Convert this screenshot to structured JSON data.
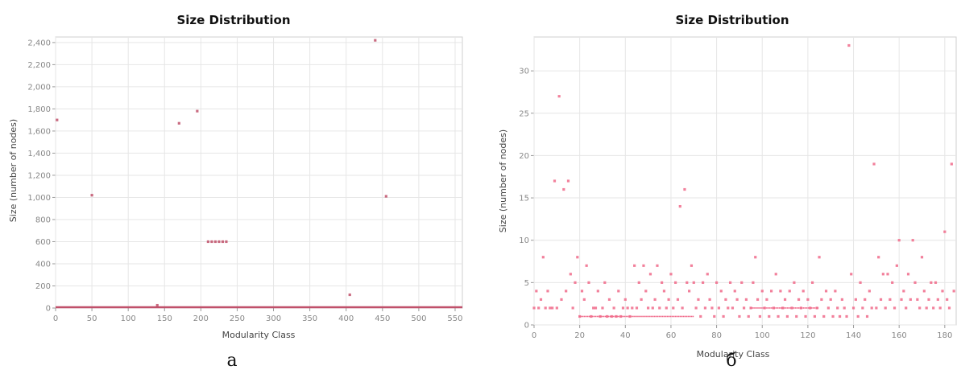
{
  "chart_data": [
    {
      "type": "scatter",
      "title": "Size Distribution",
      "xlabel": "Modularity Class",
      "ylabel": "Size (number of nodes)",
      "panel_label": "а",
      "xlim": [
        0,
        560
      ],
      "ylim": [
        0,
        2450
      ],
      "xticks": [
        "0",
        "50",
        "100",
        "150",
        "200",
        "250",
        "300",
        "350",
        "400",
        "450",
        "500",
        "550"
      ],
      "yticks": [
        "0",
        "200",
        "400",
        "600",
        "800",
        "1,000",
        "1,200",
        "1,400",
        "1,600",
        "1,800",
        "2,000",
        "2,200",
        "2,400"
      ],
      "grid": true,
      "marker_color": "#c0506a",
      "points": [
        [
          2,
          1700
        ],
        [
          50,
          1020
        ],
        [
          170,
          1670
        ],
        [
          195,
          1780
        ],
        [
          210,
          600
        ],
        [
          215,
          600
        ],
        [
          220,
          600
        ],
        [
          225,
          600
        ],
        [
          230,
          600
        ],
        [
          235,
          600
        ],
        [
          140,
          25
        ],
        [
          440,
          2420
        ],
        [
          455,
          1010
        ],
        [
          405,
          120
        ]
      ],
      "baseline": {
        "from": 0,
        "to": 560,
        "value": 0
      }
    },
    {
      "type": "scatter",
      "title": "Size Distribution",
      "xlabel": "Modularity Class",
      "ylabel": "Size (number of nodes)",
      "panel_label": "б",
      "xlim": [
        0,
        185
      ],
      "ylim": [
        0,
        34
      ],
      "xticks": [
        "0",
        "20",
        "40",
        "60",
        "80",
        "100",
        "120",
        "140",
        "160",
        "180"
      ],
      "yticks": [
        "0",
        "5",
        "10",
        "15",
        "20",
        "25",
        "30"
      ],
      "grid": true,
      "marker_color": "#f06a8a",
      "points": [
        [
          4,
          8
        ],
        [
          9,
          17
        ],
        [
          11,
          27
        ],
        [
          13,
          16
        ],
        [
          15,
          17
        ],
        [
          64,
          14
        ],
        [
          66,
          16
        ],
        [
          97,
          8
        ],
        [
          138,
          33
        ],
        [
          149,
          19
        ],
        [
          160,
          10
        ],
        [
          166,
          10
        ],
        [
          170,
          8
        ],
        [
          180,
          11
        ],
        [
          183,
          19
        ],
        [
          125,
          8
        ],
        [
          151,
          8
        ],
        [
          0,
          2
        ],
        [
          1,
          4
        ],
        [
          2,
          2
        ],
        [
          3,
          3
        ],
        [
          5,
          2
        ],
        [
          6,
          4
        ],
        [
          7,
          2
        ],
        [
          8,
          2
        ],
        [
          10,
          2
        ],
        [
          12,
          3
        ],
        [
          14,
          4
        ],
        [
          16,
          6
        ],
        [
          17,
          2
        ],
        [
          18,
          5
        ],
        [
          19,
          8
        ],
        [
          20,
          1
        ],
        [
          21,
          4
        ],
        [
          22,
          3
        ],
        [
          23,
          7
        ],
        [
          24,
          5
        ],
        [
          25,
          1
        ],
        [
          26,
          2
        ],
        [
          27,
          2
        ],
        [
          28,
          4
        ],
        [
          29,
          1
        ],
        [
          30,
          2
        ],
        [
          31,
          5
        ],
        [
          32,
          1
        ],
        [
          33,
          3
        ],
        [
          34,
          1
        ],
        [
          35,
          2
        ],
        [
          36,
          1
        ],
        [
          37,
          4
        ],
        [
          38,
          1
        ],
        [
          39,
          2
        ],
        [
          40,
          3
        ],
        [
          41,
          2
        ],
        [
          42,
          1
        ],
        [
          43,
          2
        ],
        [
          44,
          7
        ],
        [
          45,
          2
        ],
        [
          46,
          5
        ],
        [
          47,
          3
        ],
        [
          48,
          7
        ],
        [
          49,
          4
        ],
        [
          50,
          2
        ],
        [
          51,
          6
        ],
        [
          52,
          2
        ],
        [
          53,
          3
        ],
        [
          54,
          7
        ],
        [
          55,
          2
        ],
        [
          56,
          5
        ],
        [
          57,
          4
        ],
        [
          58,
          2
        ],
        [
          59,
          3
        ],
        [
          60,
          6
        ],
        [
          61,
          2
        ],
        [
          62,
          5
        ],
        [
          63,
          3
        ],
        [
          65,
          2
        ],
        [
          67,
          5
        ],
        [
          68,
          4
        ],
        [
          69,
          7
        ],
        [
          70,
          5
        ],
        [
          71,
          2
        ],
        [
          72,
          3
        ],
        [
          73,
          1
        ],
        [
          74,
          5
        ],
        [
          75,
          2
        ],
        [
          76,
          6
        ],
        [
          77,
          3
        ],
        [
          78,
          2
        ],
        [
          79,
          1
        ],
        [
          80,
          5
        ],
        [
          81,
          2
        ],
        [
          82,
          4
        ],
        [
          83,
          1
        ],
        [
          84,
          3
        ],
        [
          85,
          2
        ],
        [
          86,
          5
        ],
        [
          87,
          2
        ],
        [
          88,
          4
        ],
        [
          89,
          3
        ],
        [
          90,
          1
        ],
        [
          91,
          5
        ],
        [
          92,
          2
        ],
        [
          93,
          3
        ],
        [
          94,
          1
        ],
        [
          95,
          2
        ],
        [
          96,
          5
        ],
        [
          98,
          3
        ],
        [
          99,
          1
        ],
        [
          100,
          4
        ],
        [
          101,
          2
        ],
        [
          102,
          3
        ],
        [
          103,
          1
        ],
        [
          104,
          4
        ],
        [
          105,
          2
        ],
        [
          106,
          6
        ],
        [
          107,
          1
        ],
        [
          108,
          4
        ],
        [
          109,
          2
        ],
        [
          110,
          3
        ],
        [
          111,
          1
        ],
        [
          112,
          4
        ],
        [
          113,
          2
        ],
        [
          114,
          5
        ],
        [
          115,
          1
        ],
        [
          116,
          3
        ],
        [
          117,
          2
        ],
        [
          118,
          4
        ],
        [
          119,
          1
        ],
        [
          120,
          3
        ],
        [
          121,
          2
        ],
        [
          122,
          5
        ],
        [
          123,
          1
        ],
        [
          124,
          2
        ],
        [
          126,
          3
        ],
        [
          127,
          1
        ],
        [
          128,
          4
        ],
        [
          129,
          2
        ],
        [
          130,
          3
        ],
        [
          131,
          1
        ],
        [
          132,
          4
        ],
        [
          133,
          2
        ],
        [
          134,
          1
        ],
        [
          135,
          3
        ],
        [
          136,
          2
        ],
        [
          137,
          1
        ],
        [
          139,
          6
        ],
        [
          140,
          2
        ],
        [
          141,
          3
        ],
        [
          142,
          1
        ],
        [
          143,
          5
        ],
        [
          144,
          2
        ],
        [
          145,
          3
        ],
        [
          146,
          1
        ],
        [
          147,
          4
        ],
        [
          148,
          2
        ],
        [
          150,
          2
        ],
        [
          152,
          3
        ],
        [
          153,
          6
        ],
        [
          154,
          2
        ],
        [
          155,
          6
        ],
        [
          156,
          3
        ],
        [
          157,
          5
        ],
        [
          158,
          2
        ],
        [
          159,
          7
        ],
        [
          161,
          3
        ],
        [
          162,
          4
        ],
        [
          163,
          2
        ],
        [
          164,
          6
        ],
        [
          165,
          3
        ],
        [
          167,
          5
        ],
        [
          168,
          3
        ],
        [
          169,
          2
        ],
        [
          171,
          4
        ],
        [
          172,
          2
        ],
        [
          173,
          3
        ],
        [
          174,
          5
        ],
        [
          175,
          2
        ],
        [
          176,
          5
        ],
        [
          177,
          3
        ],
        [
          178,
          2
        ],
        [
          179,
          4
        ],
        [
          181,
          3
        ],
        [
          182,
          2
        ],
        [
          184,
          4
        ]
      ],
      "dotted_rows": [
        {
          "from": 20,
          "to": 70,
          "value": 1
        },
        {
          "from": 95,
          "to": 125,
          "value": 2
        }
      ]
    }
  ]
}
